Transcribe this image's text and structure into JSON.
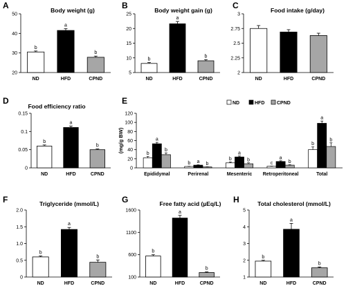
{
  "chart_data": [
    {
      "panel": "A",
      "type": "bar",
      "title": "Body weight (g)",
      "categories": [
        "ND",
        "HFD",
        "CPND"
      ],
      "values": [
        30.5,
        41.5,
        27.8
      ],
      "errors": [
        0.5,
        0.9,
        0.6
      ],
      "significance": [
        "b",
        "a",
        "b"
      ],
      "colors": [
        "#ffffff",
        "#000000",
        "#a6a6a6"
      ],
      "ylim": [
        20,
        50
      ],
      "yticks": [
        20,
        30,
        40,
        50
      ],
      "ytick_labels": [
        "20",
        "30",
        "40",
        "50"
      ]
    },
    {
      "panel": "B",
      "type": "bar",
      "title": "Body weight gain (g)",
      "categories": [
        "ND",
        "HFD",
        "CPND"
      ],
      "values": [
        8.1,
        21.6,
        9.0
      ],
      "errors": [
        0.3,
        0.8,
        0.4
      ],
      "significance": [
        "b",
        "a",
        "b"
      ],
      "colors": [
        "#ffffff",
        "#000000",
        "#a6a6a6"
      ],
      "ylim": [
        5,
        25
      ],
      "yticks": [
        5,
        10,
        15,
        20,
        25
      ],
      "ytick_labels": [
        "5",
        "10",
        "15",
        "20",
        "25"
      ]
    },
    {
      "panel": "C",
      "type": "bar",
      "title": "Food intake (g/day)",
      "categories": [
        "ND",
        "HFD",
        "CPND"
      ],
      "values": [
        2.75,
        2.69,
        2.63
      ],
      "errors": [
        0.05,
        0.04,
        0.04
      ],
      "significance": [
        "",
        "",
        ""
      ],
      "colors": [
        "#ffffff",
        "#000000",
        "#a6a6a6"
      ],
      "ylim": [
        2,
        3
      ],
      "yticks": [
        2,
        2.25,
        2.5,
        2.75,
        3
      ],
      "ytick_labels": [
        "2",
        "2.25",
        "2.5",
        "2.75",
        "3"
      ]
    },
    {
      "panel": "D",
      "type": "bar",
      "title": "Food efficiency ratio",
      "categories": [
        "ND",
        "HFD",
        "CPND"
      ],
      "values": [
        0.06,
        0.111,
        0.05
      ],
      "errors": [
        0.003,
        0.004,
        0.002
      ],
      "significance": [
        "b",
        "a",
        "b"
      ],
      "colors": [
        "#ffffff",
        "#000000",
        "#a6a6a6"
      ],
      "ylim": [
        0,
        0.15
      ],
      "yticks": [
        0,
        0.05,
        0.1,
        0.15
      ],
      "ytick_labels": [
        "0",
        "0.05",
        "0.1",
        "0.15"
      ]
    },
    {
      "panel": "E",
      "type": "bar",
      "title": "",
      "ylabel": "(mg/g BW)",
      "categories": [
        "Epididymal",
        "Perirenal",
        "Mesenteric",
        "Retroperitoneal",
        "Total"
      ],
      "series": [
        {
          "name": "ND",
          "color": "#ffffff",
          "values": [
            22,
            3,
            11,
            3.5,
            40
          ],
          "errors": [
            3,
            0.5,
            2,
            0.5,
            6
          ],
          "significance": [
            "b",
            "b",
            "b",
            "c",
            "b"
          ]
        },
        {
          "name": "HFD",
          "color": "#000000",
          "values": [
            53,
            6,
            24,
            14,
            98
          ],
          "errors": [
            3,
            0.8,
            2,
            1.5,
            5
          ],
          "significance": [
            "a",
            "a",
            "a",
            "a",
            "a"
          ]
        },
        {
          "name": "CPND",
          "color": "#a6a6a6",
          "values": [
            29,
            2,
            9,
            6,
            47
          ],
          "errors": [
            4,
            0.4,
            2,
            1,
            8
          ],
          "significance": [
            "b",
            "b",
            "b",
            "b",
            "b"
          ]
        }
      ],
      "legend_location": "top-right",
      "ylim": [
        0,
        120
      ],
      "yticks": [
        0,
        20,
        40,
        60,
        80,
        100,
        120
      ],
      "ytick_labels": [
        "0",
        "20",
        "40",
        "60",
        "80",
        "100",
        "120"
      ]
    },
    {
      "panel": "F",
      "type": "bar",
      "title": "Triglyceride (mmol/L)",
      "categories": [
        "ND",
        "HFD",
        "CPND"
      ],
      "values": [
        0.6,
        1.42,
        0.44
      ],
      "errors": [
        0.03,
        0.06,
        0.07
      ],
      "significance": [
        "b",
        "a",
        "b"
      ],
      "colors": [
        "#ffffff",
        "#000000",
        "#a6a6a6"
      ],
      "ylim": [
        0,
        2
      ],
      "yticks": [
        0,
        0.5,
        1,
        1.5,
        2
      ],
      "ytick_labels": [
        "0",
        "0.5",
        "1.0",
        "1.5",
        "2.0"
      ]
    },
    {
      "panel": "G",
      "type": "bar",
      "title": "Free fatty acid (µEq/L)",
      "categories": [
        "ND",
        "HFD",
        "CPND"
      ],
      "values": [
        570,
        1420,
        200
      ],
      "errors": [
        30,
        60,
        15
      ],
      "significance": [
        "b",
        "a",
        "b"
      ],
      "colors": [
        "#ffffff",
        "#000000",
        "#a6a6a6"
      ],
      "ylim": [
        100,
        1600
      ],
      "yticks": [
        100,
        600,
        1100,
        1600
      ],
      "ytick_labels": [
        "100",
        "600",
        "1100",
        "1600"
      ]
    },
    {
      "panel": "H",
      "type": "bar",
      "title": "Total cholesterol (mmol/L)",
      "categories": [
        "ND",
        "HFD",
        "CPND"
      ],
      "values": [
        1.95,
        3.85,
        1.55
      ],
      "errors": [
        0.05,
        0.35,
        0.05
      ],
      "significance": [
        "b",
        "a",
        "b"
      ],
      "colors": [
        "#ffffff",
        "#000000",
        "#a6a6a6"
      ],
      "ylim": [
        1,
        5
      ],
      "yticks": [
        1,
        2,
        3,
        4,
        5
      ],
      "ytick_labels": [
        "1",
        "2",
        "3",
        "4",
        "5"
      ]
    }
  ]
}
